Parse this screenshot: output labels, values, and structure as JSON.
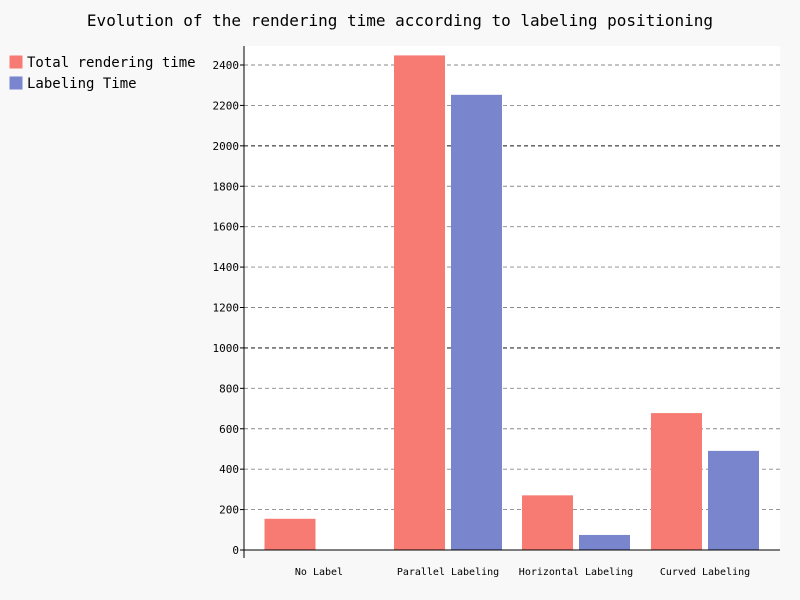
{
  "chart_data": {
    "type": "bar",
    "title": "Evolution of the rendering time according to labeling positioning",
    "categories": [
      "No Label",
      "Parallel Labeling",
      "Horizontal Labeling",
      "Curved Labeling"
    ],
    "series": [
      {
        "name": "Total rendering time",
        "values": [
          152,
          2445,
          268,
          675
        ],
        "color": "#f77b72"
      },
      {
        "name": "Labeling Time",
        "values": [
          0,
          2250,
          72,
          488
        ],
        "color": "#7985cc"
      }
    ],
    "ylim": [
      0,
      2500
    ],
    "yticks": [
      0,
      200,
      400,
      600,
      800,
      1000,
      1200,
      1400,
      1600,
      1800,
      2000,
      2200,
      2400
    ],
    "major_yticks": [
      1000,
      2000
    ],
    "grid": true,
    "legend_position": "top-left"
  }
}
